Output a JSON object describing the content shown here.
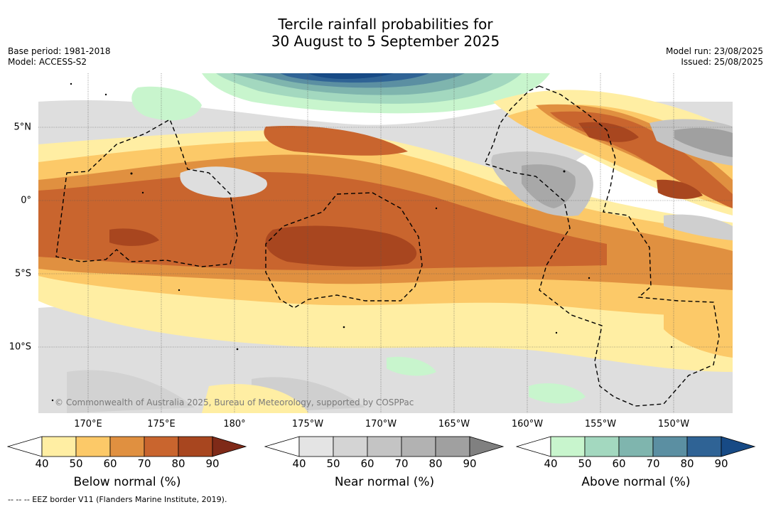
{
  "title": {
    "line1": "Tercile rainfall probabilities for",
    "line2": "30 August to 5 September 2025"
  },
  "meta_left": {
    "base_period": "Base period: 1981-2018",
    "model": "Model: ACCESS-S2"
  },
  "meta_right": {
    "model_run": "Model run: 23/08/2025",
    "issued": "Issued: 25/08/2025"
  },
  "map": {
    "longitude_labels": [
      "170°E",
      "175°E",
      "180°",
      "175°W",
      "170°W",
      "165°W",
      "160°W",
      "155°W",
      "150°W"
    ],
    "latitude_labels": [
      "5°N",
      "0°",
      "5°S",
      "10°S"
    ],
    "copyright": "© Commonwealth of Australia 2025, Bureau of Meteorology, supported by COSPPac",
    "gridlines": true
  },
  "legend": {
    "ticks": [
      "40",
      "50",
      "60",
      "70",
      "80",
      "90"
    ],
    "below": {
      "title": "Below normal (%)",
      "colors": [
        "#ffffff",
        "#ffeea3",
        "#fcc968",
        "#e09040",
        "#c9652e",
        "#a8461f",
        "#7f2a18"
      ]
    },
    "near": {
      "title": "Near normal (%)",
      "colors": [
        "#ffffff",
        "#e4e4e4",
        "#d4d4d4",
        "#c4c4c4",
        "#b2b2b2",
        "#a0a0a0",
        "#808080"
      ]
    },
    "above": {
      "title": "Above normal (%)",
      "colors": [
        "#ffffff",
        "#c8f5cd",
        "#a3d8bf",
        "#7fb5ae",
        "#5b8fa2",
        "#2f6395",
        "#174a85"
      ]
    }
  },
  "eez_note": "--  --  -- EEZ border V11 (Flanders Marine Institute, 2019)."
}
